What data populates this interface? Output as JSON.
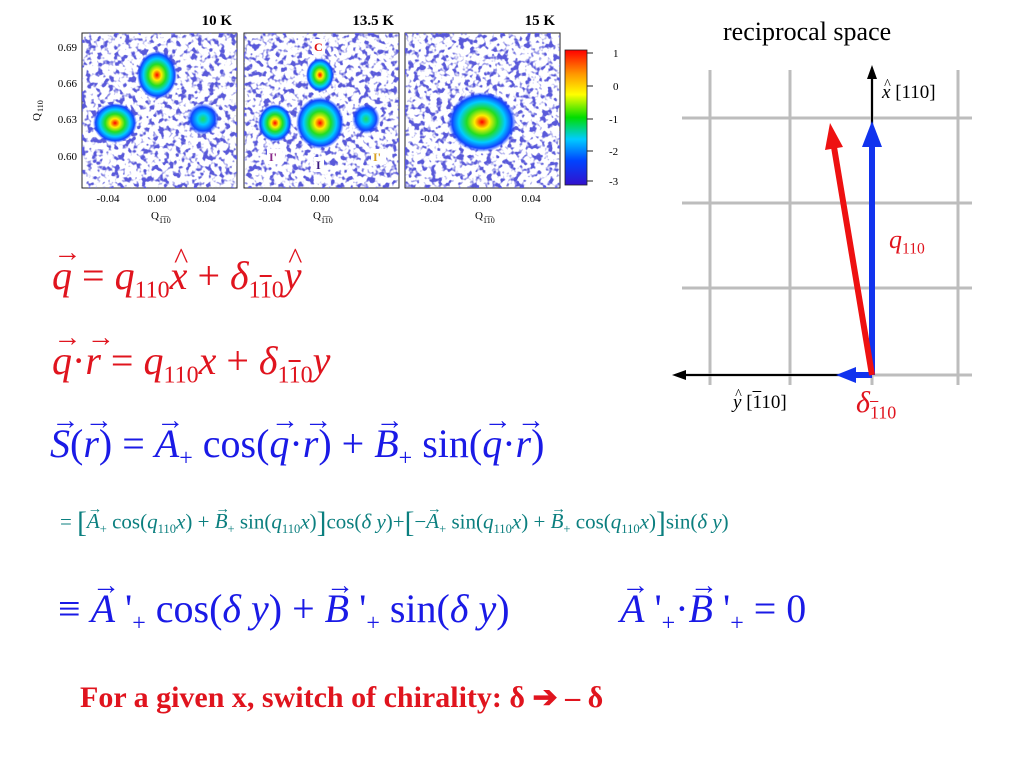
{
  "figure": {
    "panels": [
      {
        "title": "10 K"
      },
      {
        "title": "13.5 K"
      },
      {
        "title": "15 K"
      }
    ],
    "y_axis_label": "Q",
    "y_axis_sub": "110",
    "y_ticks": [
      "0.69",
      "0.66",
      "0.63",
      "0.60"
    ],
    "x_axis_label": "Q",
    "x_axis_sub": "1̅1̅0",
    "x_ticks": [
      "-0.04",
      "0.00",
      "0.04"
    ],
    "peak_labels": {
      "c": "C",
      "i": "I",
      "i_left": "I'",
      "i_right": "I'"
    },
    "colorbar_ticks": [
      "1",
      "0",
      "-1",
      "-2",
      "-3"
    ],
    "colorbar_colors": [
      "#ff0000",
      "#ff9900",
      "#ffff00",
      "#00dd00",
      "#00ccff",
      "#0044ff",
      "#3311cc"
    ]
  },
  "reciprocal": {
    "title": "reciprocal space",
    "x_label_hat": "x",
    "x_label_dir": "[110]",
    "y_label_hat": "y",
    "y_label_dir_over": "1",
    "y_label_dir_rest": "10]",
    "q_label": "q",
    "q_sub": "110",
    "delta_label": "δ",
    "delta_sub_over": "1",
    "delta_sub_rest": "10",
    "red_color": "#ee1111",
    "blue_color": "#1133ee"
  },
  "conclusion": "For a given x, switch of chirality: δ ➔ – δ"
}
